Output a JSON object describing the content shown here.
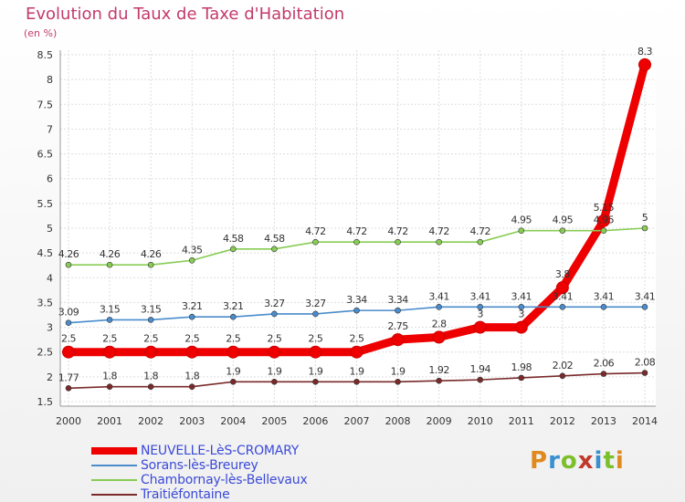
{
  "header": {
    "title": "Evolution du Taux de Taxe d'Habitation",
    "unit": "(en %)"
  },
  "logo": {
    "text": "Proxiti",
    "colors": [
      "#e08a1e",
      "#3a8fd0",
      "#7bbf2a",
      "#c0392b",
      "#3a8fd0",
      "#7bbf2a",
      "#e08a1e"
    ]
  },
  "chart_data": {
    "type": "line",
    "title": "Evolution du Taux de Taxe d'Habitation",
    "ylabel": "(en %)",
    "xlabel": "",
    "ylim": [
      1.5,
      8.5
    ],
    "yticks": [
      1.5,
      2,
      2.5,
      3,
      3.5,
      4,
      4.5,
      5,
      5.5,
      6,
      6.5,
      7,
      7.5,
      8,
      8.5
    ],
    "x": [
      "2000",
      "2001",
      "2002",
      "2003",
      "2004",
      "2005",
      "2006",
      "2007",
      "2008",
      "2009",
      "2010",
      "2011",
      "2012",
      "2013",
      "2014"
    ],
    "grid": true,
    "legend_position": "bottom-left",
    "series": [
      {
        "name": "NEUVELLE-LèS-CROMARY",
        "color": "#ee0000",
        "values": [
          2.5,
          2.5,
          2.5,
          2.5,
          2.5,
          2.5,
          2.5,
          2.5,
          2.75,
          2.8,
          3,
          3,
          3.8,
          5.15,
          8.3
        ],
        "labels": [
          "2.5",
          "2.5",
          "2.5",
          "2.5",
          "2.5",
          "2.5",
          "2.5",
          "2.5",
          "2.75",
          "2.8",
          "3",
          "3",
          "3.8",
          "5.15",
          "8.3"
        ],
        "bold": true
      },
      {
        "name": "Sorans-lès-Breurey",
        "color": "#4a8ccc",
        "values": [
          3.09,
          3.15,
          3.15,
          3.21,
          3.21,
          3.27,
          3.27,
          3.34,
          3.34,
          3.41,
          3.41,
          3.41,
          3.41,
          3.41,
          3.41
        ],
        "labels": [
          "3.09",
          "3.15",
          "3.15",
          "3.21",
          "3.21",
          "3.27",
          "3.27",
          "3.34",
          "3.34",
          "3.41",
          "3.41",
          "3.41",
          "3.41",
          "3.41",
          "3.41"
        ]
      },
      {
        "name": "Chambornay-lès-Bellevaux",
        "color": "#88cc55",
        "values": [
          4.26,
          4.26,
          4.26,
          4.35,
          4.58,
          4.58,
          4.72,
          4.72,
          4.72,
          4.72,
          4.72,
          4.95,
          4.95,
          4.95,
          5
        ],
        "labels": [
          "4.26",
          "4.26",
          "4.26",
          "4.35",
          "4.58",
          "4.58",
          "4.72",
          "4.72",
          "4.72",
          "4.72",
          "4.72",
          "4.95",
          "4.95",
          "4.95",
          "5"
        ]
      },
      {
        "name": "Traitiéfontaine",
        "color": "#7a2a2a",
        "values": [
          1.77,
          1.8,
          1.8,
          1.8,
          1.9,
          1.9,
          1.9,
          1.9,
          1.9,
          1.92,
          1.94,
          1.98,
          2.02,
          2.06,
          2.08
        ],
        "labels": [
          "1.77",
          "1.8",
          "1.8",
          "1.8",
          "1.9",
          "1.9",
          "1.9",
          "1.9",
          "1.9",
          "1.92",
          "1.94",
          "1.98",
          "2.02",
          "2.06",
          "2.08"
        ]
      }
    ]
  }
}
